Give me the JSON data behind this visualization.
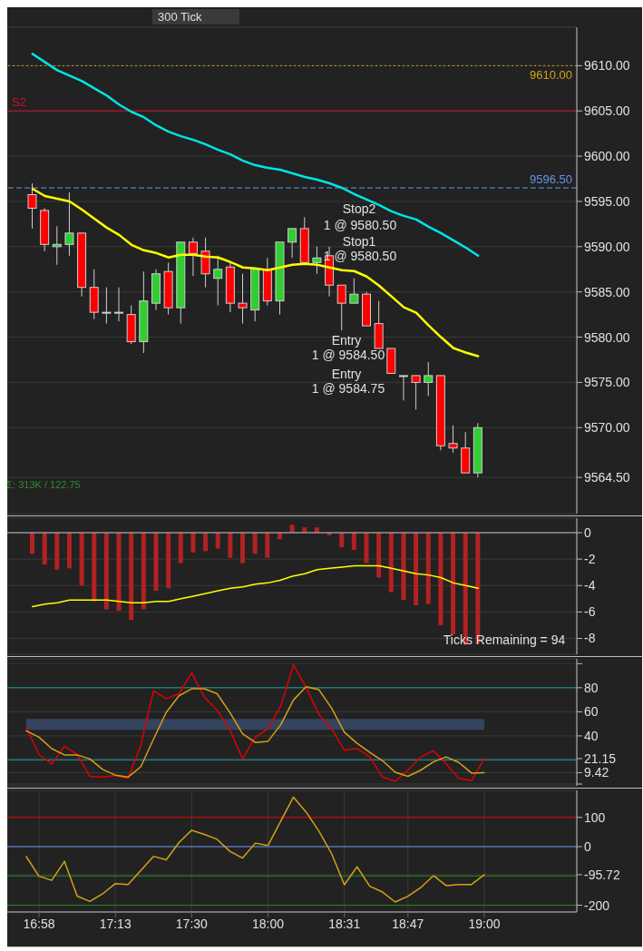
{
  "chart_data": [
    {
      "type": "candlestick",
      "subtitle": "300 Tick",
      "categories": [
        null,
        null,
        null,
        null,
        null,
        null,
        null,
        null,
        null,
        null,
        null,
        null,
        null,
        null,
        null,
        null,
        null,
        null,
        null,
        null,
        null,
        null,
        null,
        null,
        null,
        null,
        null,
        null,
        null,
        null,
        null,
        null,
        null,
        null,
        null,
        null,
        null
      ],
      "ohlc": [
        [
          9595.75,
          9597,
          9592,
          9594.25
        ],
        [
          9594,
          9594.25,
          9589.5,
          9590.25
        ],
        [
          9590,
          9592.25,
          9588,
          9590.25
        ],
        [
          9590.25,
          9596,
          9589,
          9591.5
        ],
        [
          9591.5,
          9591.5,
          9584.5,
          9585.5
        ],
        [
          9585.5,
          9587.5,
          9582,
          9582.75
        ],
        [
          9582.75,
          9585.5,
          9581.5,
          9582.75
        ],
        [
          9582.75,
          9585.5,
          9581.75,
          9582.75
        ],
        [
          9582.5,
          9583.5,
          9579.25,
          9579.5
        ],
        [
          9579.5,
          9587.25,
          9578.25,
          9584
        ],
        [
          9583.75,
          9587.5,
          9583,
          9587
        ],
        [
          9587.25,
          9588.25,
          9582.5,
          9583.25
        ],
        [
          9583.25,
          9590.5,
          9581.5,
          9590.5
        ],
        [
          9590.5,
          9591,
          9586.75,
          9589.25
        ],
        [
          9589.5,
          9591,
          9585.5,
          9587
        ],
        [
          9586.5,
          9589,
          9583.5,
          9587.5
        ],
        [
          9587.75,
          9588.25,
          9582.75,
          9583.75
        ],
        [
          9583.75,
          9587,
          9581.5,
          9583.25
        ],
        [
          9583,
          9587.5,
          9581.75,
          9587.5
        ],
        [
          9587.5,
          9588.75,
          9583.5,
          9584
        ],
        [
          9584,
          9590.5,
          9582.5,
          9590.5
        ],
        [
          9590.5,
          9592,
          9588.75,
          9592
        ],
        [
          9592,
          9593.25,
          9588.25,
          9588.25
        ],
        [
          9588.25,
          9590,
          9587,
          9588.75
        ],
        [
          9589,
          9590,
          9584.5,
          9585.75
        ],
        [
          9585.75,
          9585.75,
          9580.75,
          9583.75
        ],
        [
          9583.75,
          9586.5,
          9583.75,
          9584.75
        ],
        [
          9584.75,
          9585,
          9581.25,
          9581.25
        ],
        [
          9581.5,
          9584,
          9578.75,
          9578.75
        ],
        [
          9578.75,
          9578.75,
          9576,
          9576
        ],
        [
          9575.75,
          9575.75,
          9573,
          9575.75
        ],
        [
          9575.75,
          9575.75,
          9572,
          9575
        ],
        [
          9575,
          9577.25,
          9573.5,
          9575.75
        ],
        [
          9575.75,
          9575.75,
          9567.5,
          9568
        ],
        [
          9568.25,
          9570.25,
          9567.25,
          9567.75
        ],
        [
          9567.75,
          9569.5,
          9565,
          9565
        ],
        [
          9565,
          9570.5,
          9564.5,
          9570
        ]
      ],
      "colors": [
        "#ff0000",
        "#ff0000",
        "#32cd32",
        "#32cd32",
        "#ff0000",
        "#ff0000",
        "#d0d0d0",
        "#d0d0d0",
        "#ff0000",
        "#32cd32",
        "#32cd32",
        "#ff0000",
        "#32cd32",
        "#ff0000",
        "#ff0000",
        "#32cd32",
        "#ff0000",
        "#ff0000",
        "#32cd32",
        "#ff0000",
        "#32cd32",
        "#32cd32",
        "#ff0000",
        "#32cd32",
        "#ff0000",
        "#ff0000",
        "#32cd32",
        "#ff0000",
        "#ff0000",
        "#ff0000",
        "#d0d0d0",
        "#ff0000",
        "#32cd32",
        "#ff0000",
        "#ff0000",
        "#ff0000",
        "#32cd32"
      ],
      "series": [
        {
          "type": "line",
          "color": "#ffff00",
          "values": [
            9596.4,
            9595.6,
            9595.3,
            9595,
            9594.1,
            9593.1,
            9592.1,
            9591.3,
            9590.2,
            9589.6,
            9589.3,
            9588.8,
            9589.1,
            9589.1,
            9588.9,
            9588.8,
            9588.3,
            9587.7,
            9587.6,
            9587.4,
            9587.7,
            9588,
            9588.1,
            9588,
            9587.7,
            9587.4,
            9587.3,
            9586.7,
            9585.7,
            9584.5,
            9583.3,
            9582.7,
            9581.3,
            9580,
            9578.8,
            9578.3,
            9577.9
          ]
        },
        {
          "type": "line",
          "color": "#00e5e5",
          "values": [
            9611.3,
            9610.4,
            9609.5,
            9608.9,
            9608.3,
            9607.5,
            9606.7,
            9605.7,
            9604.9,
            9604.3,
            9603.4,
            9602.7,
            9602.2,
            9601.8,
            9601.3,
            9600.7,
            9600.2,
            9599.5,
            9599,
            9598.7,
            9598.5,
            9598.1,
            9597.7,
            9597.4,
            9597,
            9596.5,
            9595.8,
            9595.2,
            9594.6,
            9593.9,
            9593.4,
            9593,
            9592.2,
            9591.5,
            9590.7,
            9589.9,
            9589
          ]
        }
      ],
      "ylim": [
        9560.5,
        9614.25
      ],
      "yticks": [
        {
          "value": 9610,
          "label": "9610.00"
        },
        {
          "value": 9605,
          "label": "9605.00"
        },
        {
          "value": 9600,
          "label": "9600.00"
        },
        {
          "value": 9595,
          "label": "9595.00"
        },
        {
          "value": 9590,
          "label": "9590.00"
        },
        {
          "value": 9585,
          "label": "9585.00"
        },
        {
          "value": 9580,
          "label": "9580.00"
        },
        {
          "value": 9575,
          "label": "9575.00"
        },
        {
          "value": 9570,
          "label": "9570.00"
        },
        {
          "value": 9564.5,
          "label": "9564.50"
        }
      ],
      "grid": true,
      "tick_labels": "y",
      "ref_lines": [
        {
          "axis": "y",
          "value": 9610,
          "label": "9610.00",
          "color": "#d4a017",
          "line_style": "dotted"
        },
        {
          "axis": "y",
          "value": 9596.5,
          "label": "9596.50",
          "color": "#6495ed",
          "line_style": "dashed"
        },
        {
          "axis": "y",
          "value": 9605,
          "label": "S2",
          "color": "#c8102e",
          "line_style": "solid"
        }
      ],
      "annotations": [
        "Stop2",
        "1 @ 9580.50",
        "Stop1",
        "1 @ 9580.50",
        "Entry",
        "1 @ 9584.50",
        "Entry",
        "1 @ 9584.75",
        "Σ: 313K / 122.75"
      ]
    },
    {
      "type": "bar",
      "categories": [
        null,
        null,
        null,
        null,
        null,
        null,
        null,
        null,
        null,
        null,
        null,
        null,
        null,
        null,
        null,
        null,
        null,
        null,
        null,
        null,
        null,
        null,
        null,
        null,
        null,
        null,
        null,
        null,
        null,
        null,
        null,
        null,
        null,
        null,
        null,
        null,
        null
      ],
      "series": [
        {
          "type": "bar",
          "color": "#b22222",
          "values": [
            -1.6,
            -2.4,
            -2.8,
            -2.7,
            -4,
            -5.2,
            -5.8,
            -5.9,
            -6.6,
            -5.8,
            -4.4,
            -4.2,
            -2.3,
            -1.5,
            -1.4,
            -1.2,
            -1.9,
            -2.3,
            -1.6,
            -1.9,
            -0.5,
            0.6,
            0.4,
            0.4,
            -0.2,
            -1.1,
            -1.3,
            -2.3,
            -3.4,
            -4.5,
            -5.1,
            -5.5,
            -5.4,
            -7,
            -7.7,
            -8.5,
            -8.4
          ]
        },
        {
          "type": "line",
          "color": "#ffff00",
          "values": [
            -5.6,
            -5.4,
            -5.3,
            -5.1,
            -5.1,
            -5.1,
            -5.1,
            -5.2,
            -5.3,
            -5.3,
            -5.2,
            -5.2,
            -5,
            -4.8,
            -4.6,
            -4.4,
            -4.2,
            -4.1,
            -3.9,
            -3.8,
            -3.6,
            -3.3,
            -3.1,
            -2.8,
            -2.7,
            -2.6,
            -2.5,
            -2.5,
            -2.5,
            -2.7,
            -2.9,
            -3.1,
            -3.2,
            -3.4,
            -3.8,
            -4,
            -4.2
          ]
        }
      ],
      "ylim": [
        -9.2,
        1.1
      ],
      "yticks": [
        0,
        -2,
        -4,
        -6,
        -8
      ],
      "grid": true,
      "tick_labels": "y",
      "ref_lines": [
        {
          "axis": "y",
          "value": 0,
          "color": "#c0c0c0",
          "line_style": "solid"
        }
      ],
      "annotations": [
        "Ticks Remaining = 94"
      ]
    },
    {
      "type": "line",
      "categories": [
        null,
        null,
        null,
        null,
        null,
        null,
        null,
        null,
        null,
        null,
        null,
        null,
        null,
        null,
        null,
        null,
        null,
        null,
        null,
        null,
        null,
        null,
        null,
        null,
        null,
        null,
        null,
        null,
        null,
        null,
        null,
        null,
        null,
        null,
        null,
        null,
        null
      ],
      "series": [
        {
          "color": "#e00000",
          "values": [
            46.9,
            24.5,
            16.7,
            31.4,
            24.5,
            6.4,
            5.8,
            7.1,
            4.7,
            32.1,
            77.4,
            70.9,
            75,
            92.2,
            72.2,
            61.3,
            45.1,
            20.8,
            38.9,
            45.8,
            64.7,
            99,
            80.2,
            57.8,
            45.8,
            28,
            29.4,
            22.5,
            5.8,
            2.3,
            11.5,
            22.5,
            27.6,
            16.7,
            4.7,
            2.9,
            21.15
          ]
        },
        {
          "color": "#d4a017",
          "values": [
            44.2,
            38.9,
            29.4,
            24.2,
            24.2,
            20.8,
            12.2,
            7.4,
            5.8,
            14.3,
            37.3,
            59.5,
            73.3,
            79.1,
            79.1,
            75,
            59.5,
            41.7,
            34.5,
            35.5,
            49.3,
            69.8,
            80.8,
            78.4,
            63,
            43.1,
            33.8,
            26.3,
            19.4,
            9.8,
            6.4,
            11.5,
            18.4,
            22.5,
            17.9,
            9.1,
            9.42
          ]
        }
      ],
      "ylim": [
        -1.5,
        104
      ],
      "yticks": [
        {
          "value": 100,
          "label": null
        },
        80,
        60,
        40,
        {
          "value": 21.15,
          "label": "21.15"
        },
        {
          "value": 9.42,
          "label": "9.42"
        },
        {
          "value": 0,
          "label": null
        }
      ],
      "grid": true,
      "tick_labels": "y",
      "ref_lines": [
        {
          "axis": "y",
          "value": 80,
          "color": "#1a9a9a",
          "line_style": "solid"
        },
        {
          "axis": "y",
          "value": 20,
          "color": "#1a9a9a",
          "line_style": "solid"
        }
      ],
      "bands": [
        {
          "axis": "y",
          "from": 45,
          "to": 54,
          "color": "#34445e"
        }
      ]
    },
    {
      "type": "line",
      "categories": [
        null,
        "16:58",
        null,
        null,
        null,
        null,
        null,
        "17:13",
        null,
        null,
        null,
        null,
        null,
        "17:30",
        null,
        null,
        null,
        null,
        null,
        "18:00",
        null,
        null,
        null,
        null,
        null,
        "18:31",
        null,
        null,
        null,
        null,
        "18:47",
        null,
        null,
        null,
        null,
        null,
        "19:00"
      ],
      "series": [
        {
          "color": "#d4a017",
          "values": [
            -34,
            -101,
            -115,
            -50,
            -169,
            -187,
            -161,
            -126,
            -129,
            -81,
            -33,
            -45,
            14,
            56,
            42,
            25,
            -16,
            -39,
            12,
            4,
            87,
            169,
            118,
            53,
            -24,
            -130,
            -69,
            -135,
            -155,
            -189,
            -169,
            -140,
            -99,
            -133,
            -129,
            -129,
            -95.72
          ]
        }
      ],
      "ylim": [
        -223,
        192
      ],
      "yticks": [
        100,
        0,
        {
          "value": -95.72,
          "label": "-95.72"
        },
        -200
      ],
      "grid": true,
      "ref_lines": [
        {
          "axis": "y",
          "value": 100,
          "color": "#e00000",
          "line_style": "solid"
        },
        {
          "axis": "y",
          "value": 0,
          "color": "#6495ed",
          "line_style": "solid"
        },
        {
          "axis": "y",
          "value": -100,
          "color": "#228b22",
          "line_style": "solid"
        },
        {
          "axis": "y",
          "value": -200,
          "color": "#228b22",
          "line_style": "solid"
        }
      ]
    }
  ]
}
